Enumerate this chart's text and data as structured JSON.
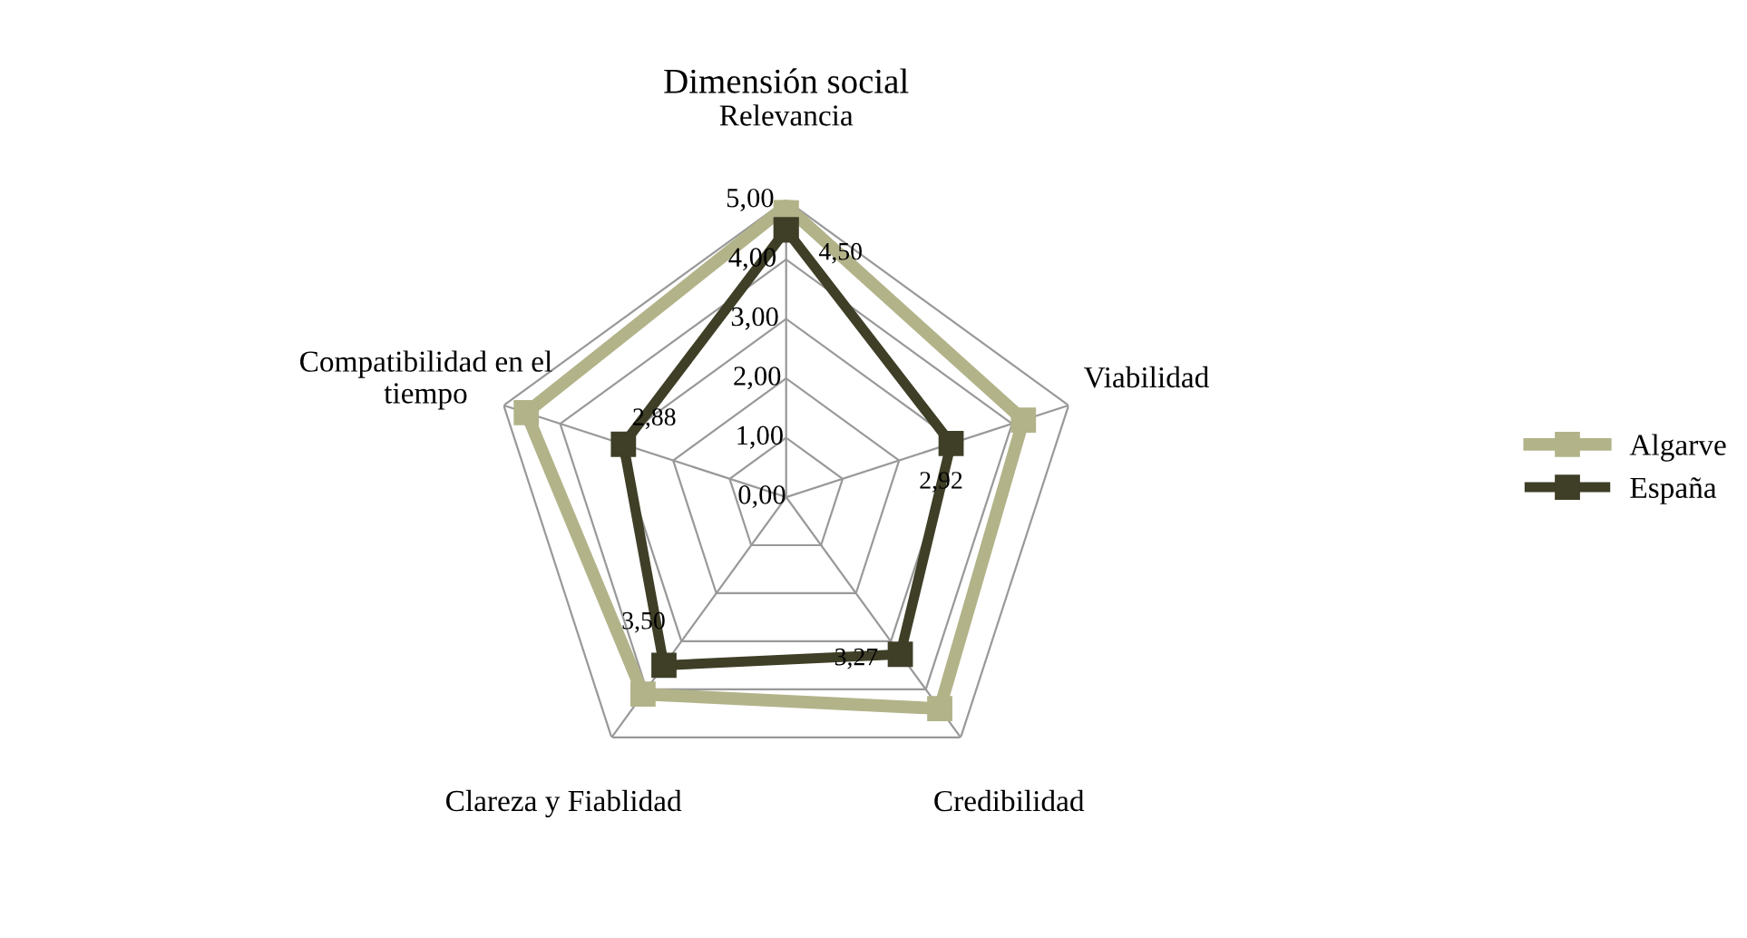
{
  "chart_data": {
    "type": "radar",
    "title": "Dimensión social",
    "categories": [
      "Relevancia",
      "Viabilidad",
      "Credibilidad",
      "Clareza y Fiablidad",
      "Compatibilidad en el tiempo"
    ],
    "series": [
      {
        "name": "Algarve",
        "color": "#b3b38a",
        "values": [
          4.9,
          4.2,
          4.4,
          4.1,
          4.6
        ]
      },
      {
        "name": "España",
        "color": "#3f3f28",
        "values": [
          4.5,
          2.92,
          3.27,
          3.5,
          2.88
        ],
        "value_labels": [
          "4,50",
          "2,92",
          "3,27",
          "3,50",
          "2,88"
        ]
      }
    ],
    "ylim": [
      0,
      5
    ],
    "yticks": [
      {
        "value": 0,
        "label": "0,00"
      },
      {
        "value": 1,
        "label": "1,00"
      },
      {
        "value": 2,
        "label": "2,00"
      },
      {
        "value": 3,
        "label": "3,00"
      },
      {
        "value": 4,
        "label": "4,00"
      },
      {
        "value": 5,
        "label": "5,00"
      }
    ],
    "grid": true,
    "legend": "right",
    "marker": "square"
  }
}
